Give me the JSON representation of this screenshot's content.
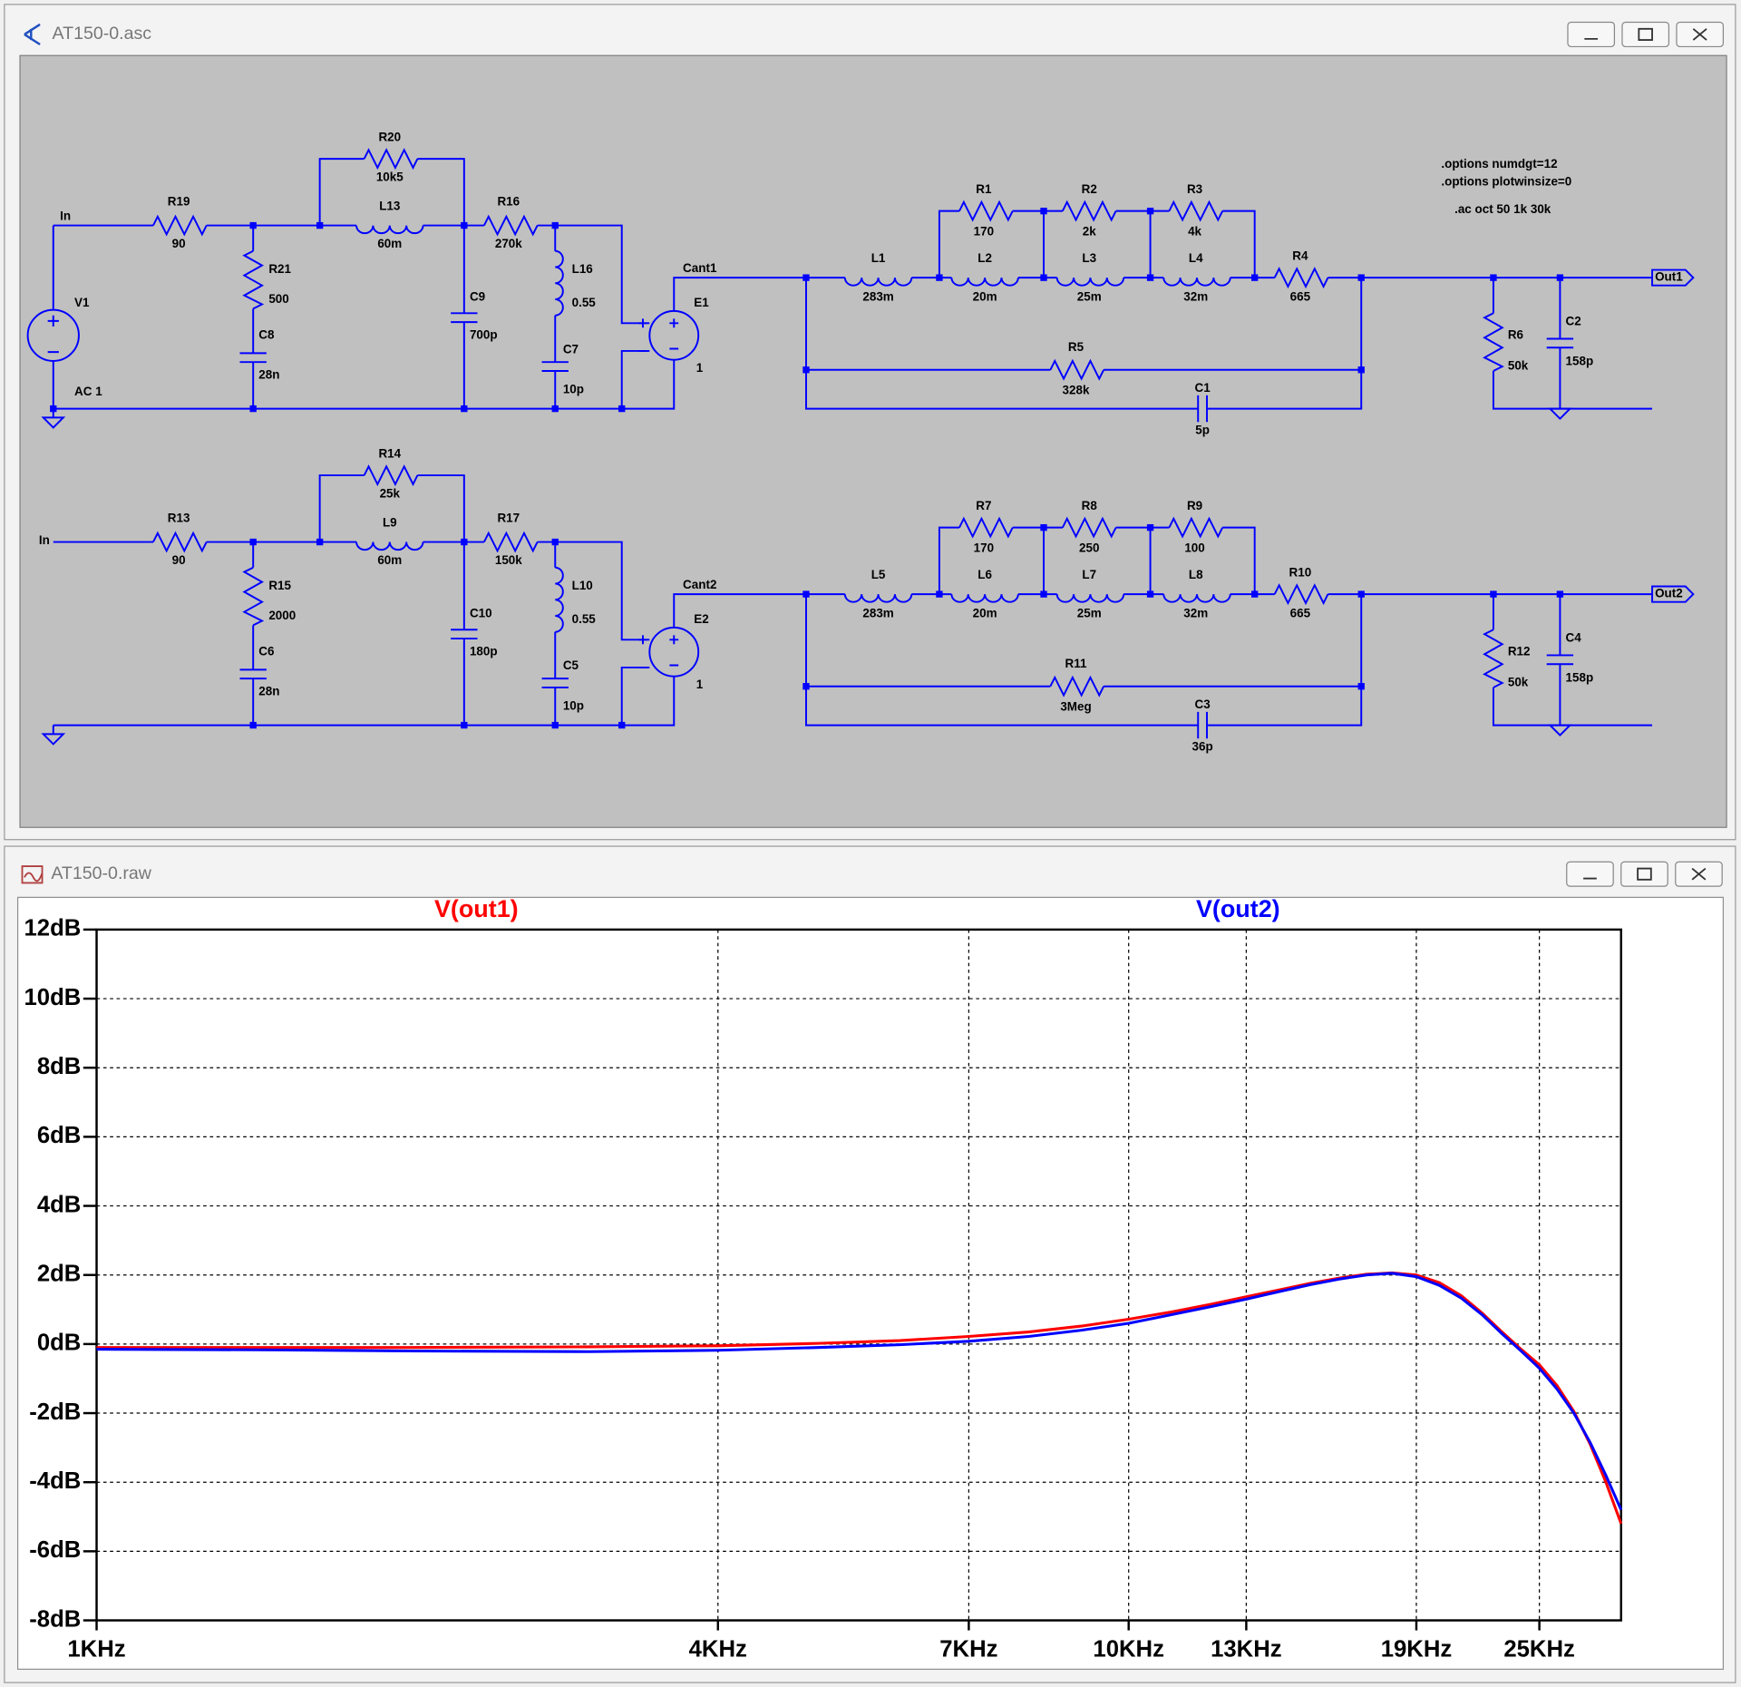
{
  "schematic_window": {
    "title": "AT150-0.asc",
    "directives": [
      ".options numdgt=12",
      ".options plotwinsize=0",
      ".ac oct 50 1k 30k"
    ],
    "circuits": [
      {
        "input": "In",
        "source": {
          "name": "V1",
          "value": "AC 1"
        },
        "net": "Cant1",
        "output": "Out1",
        "components": [
          {
            "name": "R19",
            "value": "90"
          },
          {
            "name": "R21",
            "value": "500"
          },
          {
            "name": "C8",
            "value": "28n"
          },
          {
            "name": "R20",
            "value": "10k5"
          },
          {
            "name": "L13",
            "value": "60m"
          },
          {
            "name": "R16",
            "value": "270k"
          },
          {
            "name": "C9",
            "value": "700p"
          },
          {
            "name": "L16",
            "value": "0.55"
          },
          {
            "name": "C7",
            "value": "10p"
          },
          {
            "name": "E1",
            "value": "1"
          },
          {
            "name": "L1",
            "value": "283m"
          },
          {
            "name": "R1",
            "value": "170"
          },
          {
            "name": "L2",
            "value": "20m"
          },
          {
            "name": "R2",
            "value": "2k"
          },
          {
            "name": "L3",
            "value": "25m"
          },
          {
            "name": "R3",
            "value": "4k"
          },
          {
            "name": "L4",
            "value": "32m"
          },
          {
            "name": "R4",
            "value": "665"
          },
          {
            "name": "R5",
            "value": "328k"
          },
          {
            "name": "C1",
            "value": "5p"
          },
          {
            "name": "R6",
            "value": "50k"
          },
          {
            "name": "C2",
            "value": "158p"
          }
        ]
      },
      {
        "input": "In",
        "net": "Cant2",
        "output": "Out2",
        "components": [
          {
            "name": "R13",
            "value": "90"
          },
          {
            "name": "R15",
            "value": "2000"
          },
          {
            "name": "C6",
            "value": "28n"
          },
          {
            "name": "R14",
            "value": "25k"
          },
          {
            "name": "L9",
            "value": "60m"
          },
          {
            "name": "R17",
            "value": "150k"
          },
          {
            "name": "C10",
            "value": "180p"
          },
          {
            "name": "L10",
            "value": "0.55"
          },
          {
            "name": "C5",
            "value": "10p"
          },
          {
            "name": "E2",
            "value": "1"
          },
          {
            "name": "L5",
            "value": "283m"
          },
          {
            "name": "R7",
            "value": "170"
          },
          {
            "name": "L6",
            "value": "20m"
          },
          {
            "name": "R8",
            "value": "250"
          },
          {
            "name": "L7",
            "value": "25m"
          },
          {
            "name": "R9",
            "value": "100"
          },
          {
            "name": "L8",
            "value": "32m"
          },
          {
            "name": "R10",
            "value": "665"
          },
          {
            "name": "R11",
            "value": "3Meg"
          },
          {
            "name": "C3",
            "value": "36p"
          },
          {
            "name": "R12",
            "value": "50k"
          },
          {
            "name": "C4",
            "value": "158p"
          }
        ]
      }
    ]
  },
  "plot_window": {
    "title": "AT150-0.raw"
  },
  "chart_data": {
    "type": "line",
    "xscale": "log",
    "grid": true,
    "x": [
      1000,
      1500,
      2000,
      3000,
      4000,
      5000,
      6000,
      7000,
      8000,
      9000,
      10000,
      11000,
      12000,
      13000,
      14000,
      15000,
      16000,
      17000,
      18000,
      19000,
      20000,
      21000,
      22000,
      23000,
      24000,
      25000,
      26000,
      27000,
      28000,
      29000,
      30000
    ],
    "series": [
      {
        "name": "V(out1)",
        "color": "#ff0000",
        "values": [
          -0.1,
          -0.1,
          -0.1,
          -0.08,
          -0.05,
          0.02,
          0.1,
          0.22,
          0.35,
          0.52,
          0.72,
          0.93,
          1.15,
          1.37,
          1.57,
          1.76,
          1.91,
          2.02,
          2.06,
          2.0,
          1.78,
          1.4,
          0.9,
          0.35,
          -0.15,
          -0.6,
          -1.2,
          -1.95,
          -2.9,
          -4.0,
          -5.2
        ]
      },
      {
        "name": "V(out2)",
        "color": "#0000ff",
        "values": [
          -0.15,
          -0.17,
          -0.2,
          -0.22,
          -0.18,
          -0.1,
          -0.02,
          0.08,
          0.22,
          0.4,
          0.6,
          0.85,
          1.08,
          1.3,
          1.52,
          1.72,
          1.88,
          2.0,
          2.05,
          1.95,
          1.7,
          1.33,
          0.85,
          0.3,
          -0.2,
          -0.7,
          -1.3,
          -2.0,
          -2.85,
          -3.8,
          -4.8
        ]
      }
    ],
    "xlim": [
      1000,
      30000
    ],
    "xticks": [
      {
        "value": 1000,
        "label": "1KHz"
      },
      {
        "value": 4000,
        "label": "4KHz"
      },
      {
        "value": 7000,
        "label": "7KHz"
      },
      {
        "value": 10000,
        "label": "10KHz"
      },
      {
        "value": 13000,
        "label": "13KHz"
      },
      {
        "value": 19000,
        "label": "19KHz"
      },
      {
        "value": 25000,
        "label": "25KHz"
      }
    ],
    "ylim": [
      -8,
      12
    ],
    "yticks": [
      {
        "value": -8,
        "label": "-8dB"
      },
      {
        "value": -6,
        "label": "-6dB"
      },
      {
        "value": -4,
        "label": "-4dB"
      },
      {
        "value": -2,
        "label": "-2dB"
      },
      {
        "value": 0,
        "label": "0dB"
      },
      {
        "value": 2,
        "label": "2dB"
      },
      {
        "value": 4,
        "label": "4dB"
      },
      {
        "value": 6,
        "label": "6dB"
      },
      {
        "value": 8,
        "label": "8dB"
      },
      {
        "value": 10,
        "label": "10dB"
      },
      {
        "value": 12,
        "label": "12dB"
      }
    ]
  }
}
